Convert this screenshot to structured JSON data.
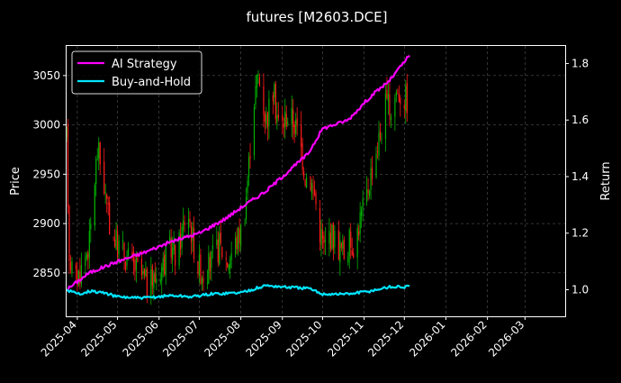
{
  "chart_data": {
    "type": "candlestick+line",
    "title": "futures [M2603.DCE]",
    "ylabel_left": "Price",
    "ylabel_right": "Return",
    "ylim_left": [
      2806,
      3080
    ],
    "ylim_right": [
      0.906,
      1.862
    ],
    "xlim": [
      "2025-03-24",
      "2026-03-31"
    ],
    "left_ticks": [
      2850,
      2900,
      2950,
      3000,
      3050
    ],
    "right_ticks": [
      1.0,
      1.2,
      1.4,
      1.6,
      1.8
    ],
    "right_tick_labels": [
      "1.0",
      "1.2",
      "1.4",
      "1.6",
      "1.8"
    ],
    "x_ticks": [
      "2025-04-01",
      "2025-05-01",
      "2025-06-01",
      "2025-07-01",
      "2025-08-01",
      "2025-09-01",
      "2025-10-01",
      "2025-11-01",
      "2025-12-01",
      "2026-01-01",
      "2026-02-01",
      "2026-03-01"
    ],
    "x_tick_labels": [
      "2025-04",
      "2025-05",
      "2025-06",
      "2025-07",
      "2025-08",
      "2025-09",
      "2025-10",
      "2025-11",
      "2025-12",
      "2026-01",
      "2026-02",
      "2026-03"
    ],
    "grid": true,
    "legend_position": "top-left",
    "up_color": "#00b300",
    "down_color": "#ff1a1a",
    "price_path": [
      [
        "2025-03-24",
        2985
      ],
      [
        "2025-03-26",
        2870
      ],
      [
        "2025-03-30",
        2840
      ],
      [
        "2025-04-04",
        2855
      ],
      [
        "2025-04-10",
        2880
      ],
      [
        "2025-04-13",
        2930
      ],
      [
        "2025-04-16",
        2975
      ],
      [
        "2025-04-20",
        2950
      ],
      [
        "2025-04-24",
        2905
      ],
      [
        "2025-04-30",
        2880
      ],
      [
        "2025-05-06",
        2870
      ],
      [
        "2025-05-12",
        2858
      ],
      [
        "2025-05-18",
        2850
      ],
      [
        "2025-05-24",
        2835
      ],
      [
        "2025-05-30",
        2848
      ],
      [
        "2025-06-05",
        2862
      ],
      [
        "2025-06-10",
        2875
      ],
      [
        "2025-06-14",
        2865
      ],
      [
        "2025-06-18",
        2892
      ],
      [
        "2025-06-22",
        2918
      ],
      [
        "2025-06-26",
        2885
      ],
      [
        "2025-06-30",
        2858
      ],
      [
        "2025-07-05",
        2848
      ],
      [
        "2025-07-10",
        2862
      ],
      [
        "2025-07-16",
        2878
      ],
      [
        "2025-07-22",
        2862
      ],
      [
        "2025-07-28",
        2880
      ],
      [
        "2025-08-03",
        2900
      ],
      [
        "2025-08-07",
        2960
      ],
      [
        "2025-08-10",
        3020
      ],
      [
        "2025-08-14",
        3050
      ],
      [
        "2025-08-20",
        3005
      ],
      [
        "2025-08-25",
        3035
      ],
      [
        "2025-08-30",
        2995
      ],
      [
        "2025-09-04",
        3010
      ],
      [
        "2025-09-09",
        3005
      ],
      [
        "2025-09-14",
        2985
      ],
      [
        "2025-09-18",
        2950
      ],
      [
        "2025-09-22",
        2945
      ],
      [
        "2025-09-25",
        2930
      ],
      [
        "2025-09-28",
        2900
      ],
      [
        "2025-10-02",
        2875
      ],
      [
        "2025-10-06",
        2890
      ],
      [
        "2025-10-10",
        2885
      ],
      [
        "2025-10-14",
        2875
      ],
      [
        "2025-10-17",
        2870
      ],
      [
        "2025-10-21",
        2880
      ],
      [
        "2025-10-25",
        2880
      ],
      [
        "2025-10-29",
        2905
      ],
      [
        "2025-11-02",
        2920
      ],
      [
        "2025-11-05",
        2945
      ],
      [
        "2025-11-09",
        2970
      ],
      [
        "2025-11-13",
        2990
      ],
      [
        "2025-11-17",
        3020
      ],
      [
        "2025-11-21",
        3015
      ],
      [
        "2025-11-25",
        3035
      ],
      [
        "2025-11-29",
        3030
      ],
      [
        "2025-12-03",
        3025
      ]
    ],
    "series": [
      {
        "name": "AI Strategy",
        "color": "#ff00ff",
        "axis": "right",
        "points": [
          [
            "2025-03-24",
            1.0
          ],
          [
            "2025-04-10",
            1.06
          ],
          [
            "2025-05-01",
            1.1
          ],
          [
            "2025-05-20",
            1.13
          ],
          [
            "2025-06-10",
            1.17
          ],
          [
            "2025-07-01",
            1.2
          ],
          [
            "2025-07-20",
            1.25
          ],
          [
            "2025-08-01",
            1.29
          ],
          [
            "2025-08-20",
            1.35
          ],
          [
            "2025-09-01",
            1.4
          ],
          [
            "2025-09-20",
            1.48
          ],
          [
            "2025-10-01",
            1.57
          ],
          [
            "2025-10-20",
            1.6
          ],
          [
            "2025-11-05",
            1.68
          ],
          [
            "2025-11-20",
            1.74
          ],
          [
            "2025-12-05",
            1.83
          ]
        ]
      },
      {
        "name": "Buy-and-Hold",
        "color": "#00e5ff",
        "axis": "right",
        "points": [
          [
            "2025-03-24",
            1.0
          ],
          [
            "2025-04-01",
            0.985
          ],
          [
            "2025-04-10",
            0.995
          ],
          [
            "2025-04-20",
            0.99
          ],
          [
            "2025-05-01",
            0.975
          ],
          [
            "2025-05-20",
            0.97
          ],
          [
            "2025-06-10",
            0.98
          ],
          [
            "2025-06-25",
            0.975
          ],
          [
            "2025-07-10",
            0.985
          ],
          [
            "2025-08-01",
            0.99
          ],
          [
            "2025-08-20",
            1.015
          ],
          [
            "2025-09-01",
            1.01
          ],
          [
            "2025-09-20",
            1.005
          ],
          [
            "2025-10-01",
            0.985
          ],
          [
            "2025-10-20",
            0.985
          ],
          [
            "2025-11-05",
            0.995
          ],
          [
            "2025-11-20",
            1.01
          ],
          [
            "2025-12-05",
            1.01
          ]
        ]
      }
    ]
  }
}
